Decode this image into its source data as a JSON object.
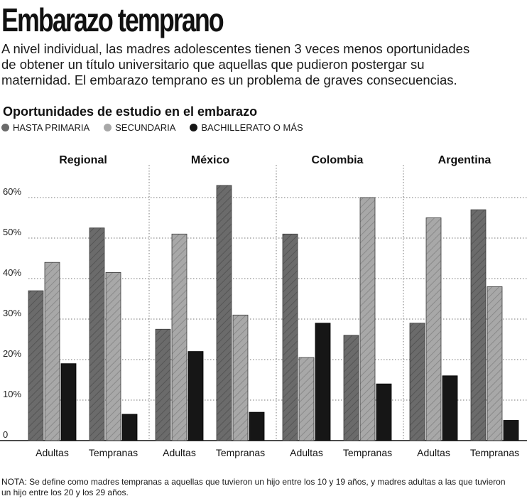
{
  "header": {
    "title": "Embarazo temprano",
    "subtitle": "A nivel individual, las madres adolescentes tienen 3 veces menos oportunidades de obtener un título universitario que aquellas que pudieron postergar su maternidad. El embarazo temprano es un problema de graves consecuencias."
  },
  "legend": {
    "items": [
      {
        "label": "HASTA PRIMARIA",
        "color": "#6b6b6b"
      },
      {
        "label": "SECUNDARIA",
        "color": "#a8a8a8"
      },
      {
        "label": "BACHILLERATO O MÁS",
        "color": "#161616"
      }
    ]
  },
  "note": "NOTA: Se define como madres tempranas a aquellas que tuvieron un hijo entre los 10 y 19 años, y madres adultas a las que tuvieron un hijo entre los 20 y los 29 años.",
  "chart_data": {
    "type": "bar",
    "title": "Oportunidades de estudio en el embarazo",
    "ylim": [
      0,
      65
    ],
    "yticks": [
      {
        "value": 0,
        "label": "0"
      },
      {
        "value": 10,
        "label": "10%"
      },
      {
        "value": 20,
        "label": "20%"
      },
      {
        "value": 30,
        "label": "30%"
      },
      {
        "value": 40,
        "label": "40%"
      },
      {
        "value": 50,
        "label": "50%"
      },
      {
        "value": 60,
        "label": "60%"
      }
    ],
    "panels": [
      {
        "name": "Regional",
        "groups": [
          {
            "label": "Adultas",
            "values": [
              37,
              44,
              19
            ]
          },
          {
            "label": "Tempranas",
            "values": [
              52.5,
              41.5,
              6.5
            ]
          }
        ]
      },
      {
        "name": "México",
        "groups": [
          {
            "label": "Adultas",
            "values": [
              27.5,
              51,
              22
            ]
          },
          {
            "label": "Tempranas",
            "values": [
              63,
              31,
              7
            ]
          }
        ]
      },
      {
        "name": "Colombia",
        "groups": [
          {
            "label": "Adultas",
            "values": [
              51,
              20.5,
              29
            ]
          },
          {
            "label": "Tempranas",
            "values": [
              26,
              60,
              14
            ]
          }
        ]
      },
      {
        "name": "Argentina",
        "groups": [
          {
            "label": "Adultas",
            "values": [
              29,
              55,
              16
            ]
          },
          {
            "label": "Tempranas",
            "values": [
              57,
              38,
              5
            ]
          }
        ]
      }
    ],
    "series": [
      "HASTA PRIMARIA",
      "SECUNDARIA",
      "BACHILLERATO O MÁS"
    ],
    "grid": true
  }
}
